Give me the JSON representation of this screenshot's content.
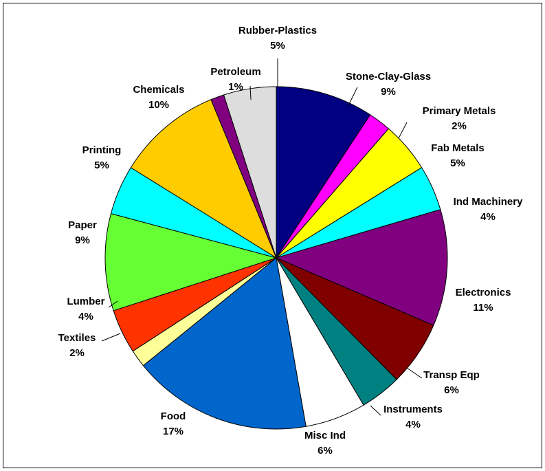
{
  "chart_data": {
    "type": "pie",
    "title": "",
    "start_angle_deg": 0,
    "direction": "clockwise",
    "slices": [
      {
        "label": "Stone-Clay-Glass",
        "pct_label": "9%",
        "value": 9.5,
        "color": "#000080"
      },
      {
        "label": "Primary Metals",
        "pct_label": "2%",
        "value": 2.2,
        "color": "#ff00ff"
      },
      {
        "label": "Fab Metals",
        "pct_label": "5%",
        "value": 4.9,
        "color": "#ffff00"
      },
      {
        "label": "Ind Machinery",
        "pct_label": "4%",
        "value": 4.4,
        "color": "#00ffff"
      },
      {
        "label": "Electronics",
        "pct_label": "11%",
        "value": 11.3,
        "color": "#800080"
      },
      {
        "label": "Transp Eqp",
        "pct_label": "6%",
        "value": 6.3,
        "color": "#800000"
      },
      {
        "label": "Instruments",
        "pct_label": "4%",
        "value": 4.0,
        "color": "#008080"
      },
      {
        "label": "Misc Ind",
        "pct_label": "6%",
        "value": 5.9,
        "color": "#ffffff"
      },
      {
        "label": "Food",
        "pct_label": "17%",
        "value": 17.4,
        "color": "#0066cc"
      },
      {
        "label": "Textiles",
        "pct_label": "2%",
        "value": 1.7,
        "color": "#ffff99"
      },
      {
        "label": "Lumber",
        "pct_label": "4%",
        "value": 4.3,
        "color": "#ff3300"
      },
      {
        "label": "Paper",
        "pct_label": "9%",
        "value": 9.4,
        "color": "#66ff33"
      },
      {
        "label": "Printing",
        "pct_label": "5%",
        "value": 4.8,
        "color": "#00ffff"
      },
      {
        "label": "Chemicals",
        "pct_label": "10%",
        "value": 10.2,
        "color": "#ffcc00"
      },
      {
        "label": "Petroleum",
        "pct_label": "1%",
        "value": 1.3,
        "color": "#800080"
      },
      {
        "label": "Rubber-Plastics",
        "pct_label": "5%",
        "value": 5.1,
        "color": "#dddddd"
      }
    ],
    "legend": "none"
  }
}
